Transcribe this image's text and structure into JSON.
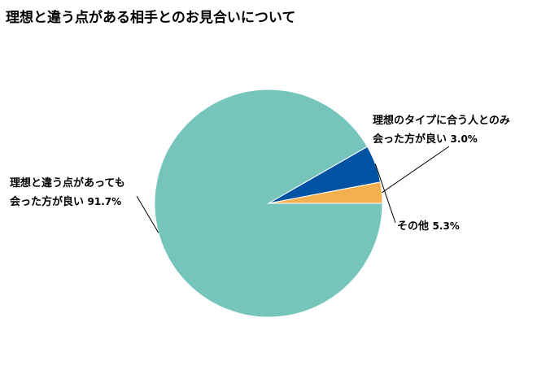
{
  "chart_data": {
    "type": "pie",
    "title": "理想と違う点がある相手とのお見合いについて",
    "slices": [
      {
        "label_lines": [
          "理想のタイプに合う人とのみ",
          "会った方が良い"
        ],
        "value": 3.0,
        "value_label": "3.0%",
        "color": "#f4b04f"
      },
      {
        "label_lines": [
          "その他"
        ],
        "value": 5.3,
        "value_label": "5.3%",
        "color": "#0052a3"
      },
      {
        "label_lines": [
          "理想と違う点があっても",
          "会った方が良い"
        ],
        "value": 91.7,
        "value_label": "91.7%",
        "color": "#76c5bc"
      }
    ],
    "legend": "none",
    "start_angle_deg": 0,
    "direction": "counterclockwise"
  }
}
